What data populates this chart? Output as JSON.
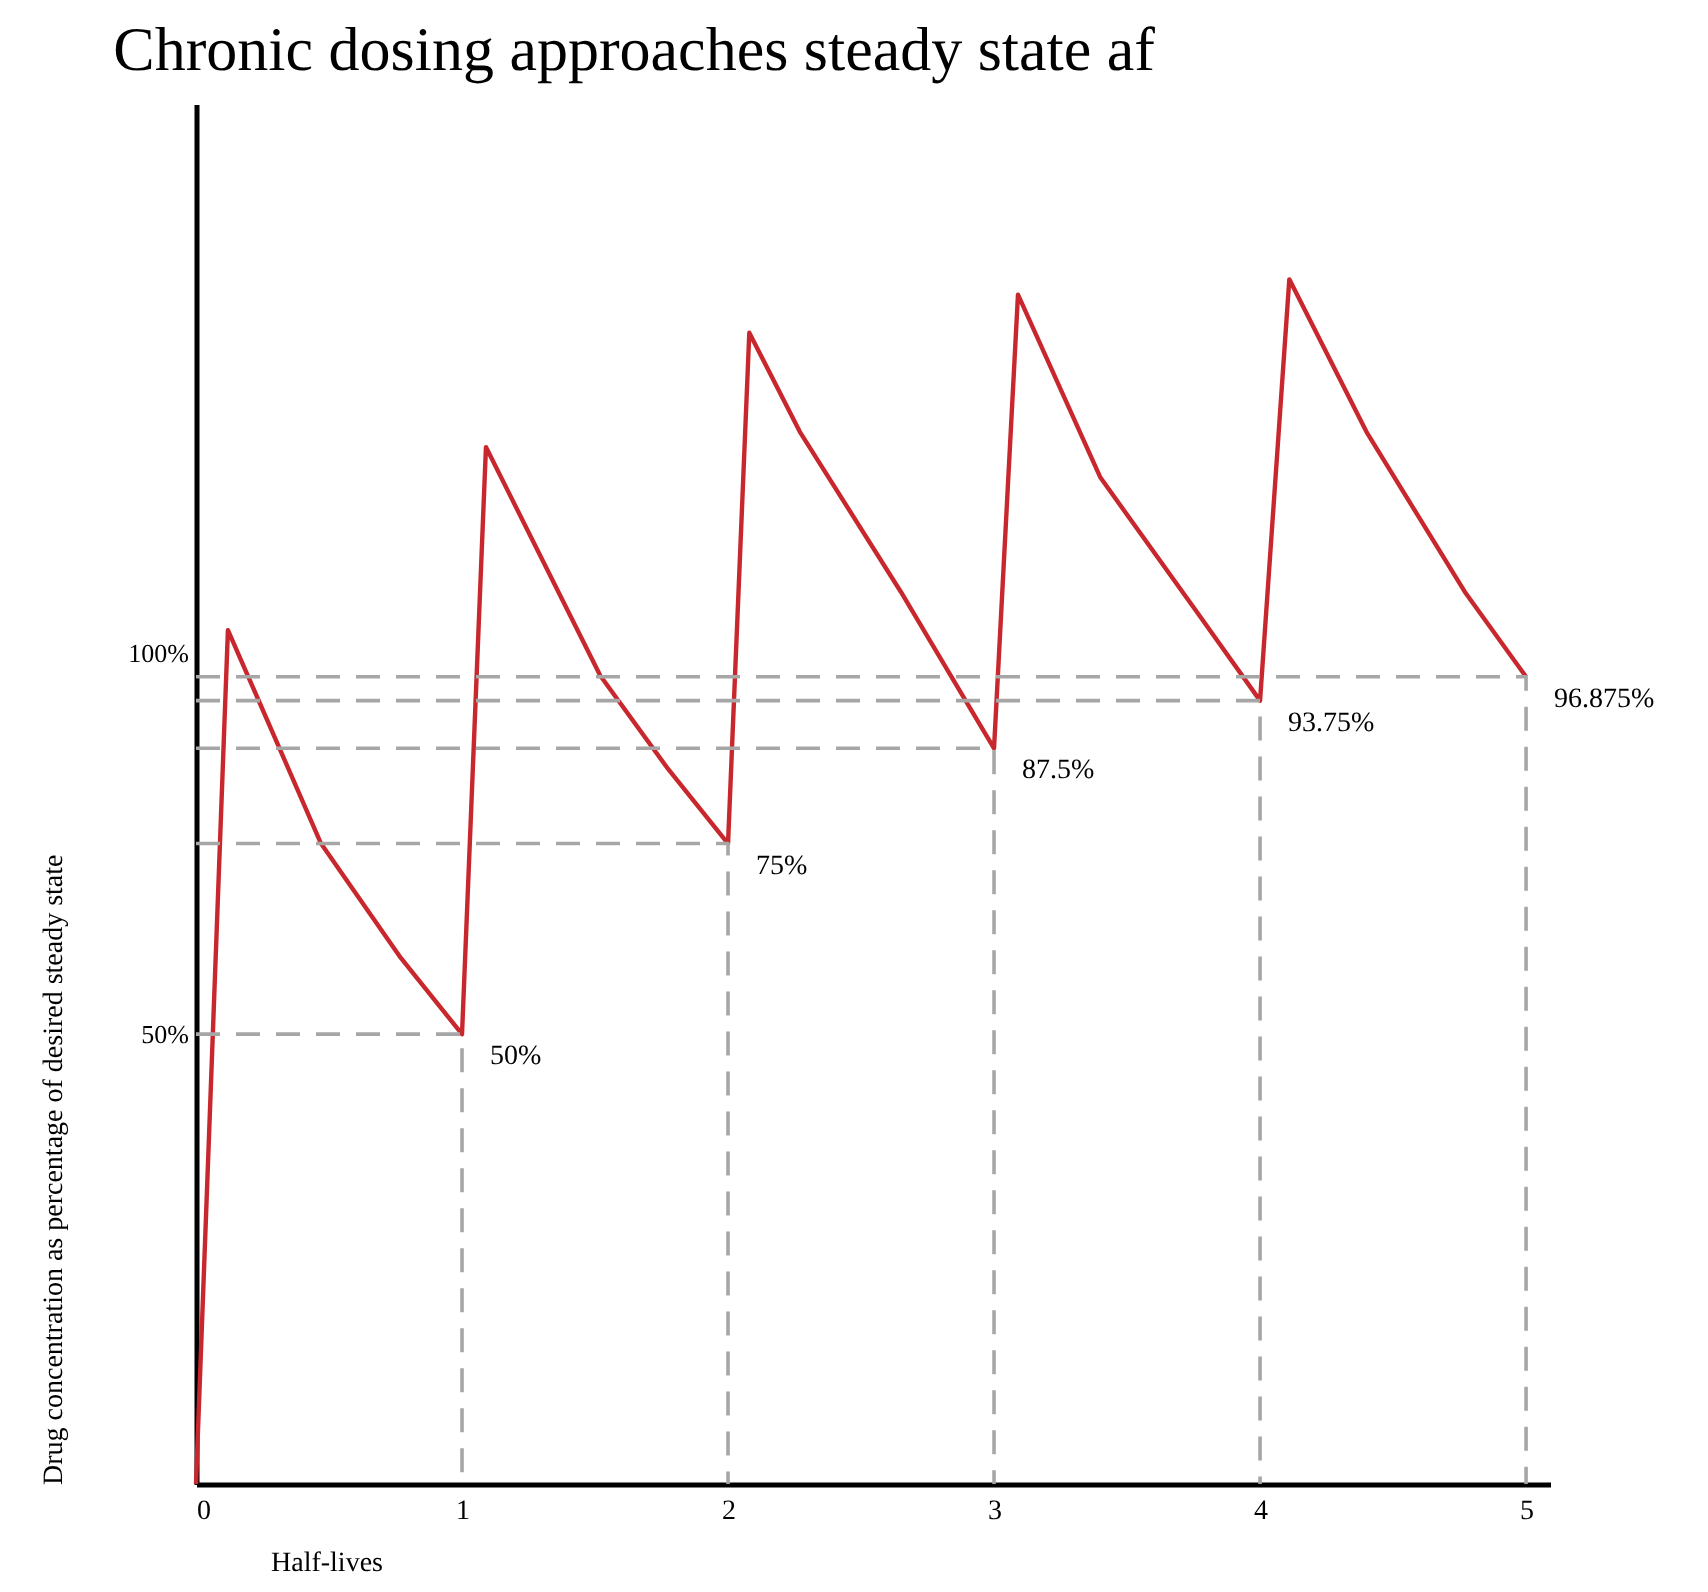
{
  "chart_data": {
    "type": "line",
    "title": "Chronic dosing approaches steady state af",
    "xlabel": "Half-lives",
    "ylabel": "Drug concentration as percentage of desired steady state",
    "xlim": [
      0,
      5.09
    ],
    "xticks": [
      0,
      1,
      2,
      3,
      4,
      5
    ],
    "ylim": [
      -9,
      172
    ],
    "yticks": [
      {
        "value": 50,
        "label": "50%"
      },
      {
        "value": 100,
        "label": "100%"
      }
    ],
    "grid": false,
    "marker": "none",
    "series": [
      {
        "type": "line",
        "color": "#c8282d",
        "line_style": "solid",
        "x": [
          0,
          0.12,
          0.47,
          0.77,
          1,
          1.09,
          1.52,
          1.77,
          2,
          2.08,
          2.27,
          2.65,
          3,
          3.09,
          3.4,
          3.77,
          4,
          4.11,
          4.4,
          4.77,
          5
        ],
        "values": [
          -9,
          103,
          75,
          60,
          50,
          127,
          97,
          85,
          75,
          142,
          129,
          108,
          87.5,
          147,
          123,
          105,
          93.75,
          149,
          129,
          108,
          96.875
        ]
      },
      {
        "type": "line",
        "color": "#a6a6a6",
        "line_style": "dashed",
        "x": [
          0,
          1,
          1
        ],
        "values": [
          50,
          50,
          -9
        ]
      },
      {
        "type": "line",
        "color": "#a6a6a6",
        "line_style": "dashed",
        "x": [
          0,
          2,
          2
        ],
        "values": [
          75,
          75,
          -9
        ]
      },
      {
        "type": "line",
        "color": "#a6a6a6",
        "line_style": "dashed",
        "x": [
          0,
          3,
          3
        ],
        "values": [
          87.5,
          87.5,
          -9
        ]
      },
      {
        "type": "line",
        "color": "#a6a6a6",
        "line_style": "dashed",
        "x": [
          0,
          4,
          4
        ],
        "values": [
          93.75,
          93.75,
          -9
        ]
      },
      {
        "type": "line",
        "color": "#a6a6a6",
        "line_style": "dashed",
        "x": [
          0,
          5,
          5
        ],
        "values": [
          96.875,
          96.875,
          -9
        ]
      }
    ],
    "annotations": [
      {
        "text": "50%",
        "x": 1,
        "y": 50
      },
      {
        "text": "75%",
        "x": 2,
        "y": 75
      },
      {
        "text": "87.5%",
        "x": 3,
        "y": 87.5
      },
      {
        "text": "93.75%",
        "x": 4,
        "y": 93.75
      },
      {
        "text": "96.875%",
        "x": 5,
        "y": 96.875
      }
    ]
  }
}
